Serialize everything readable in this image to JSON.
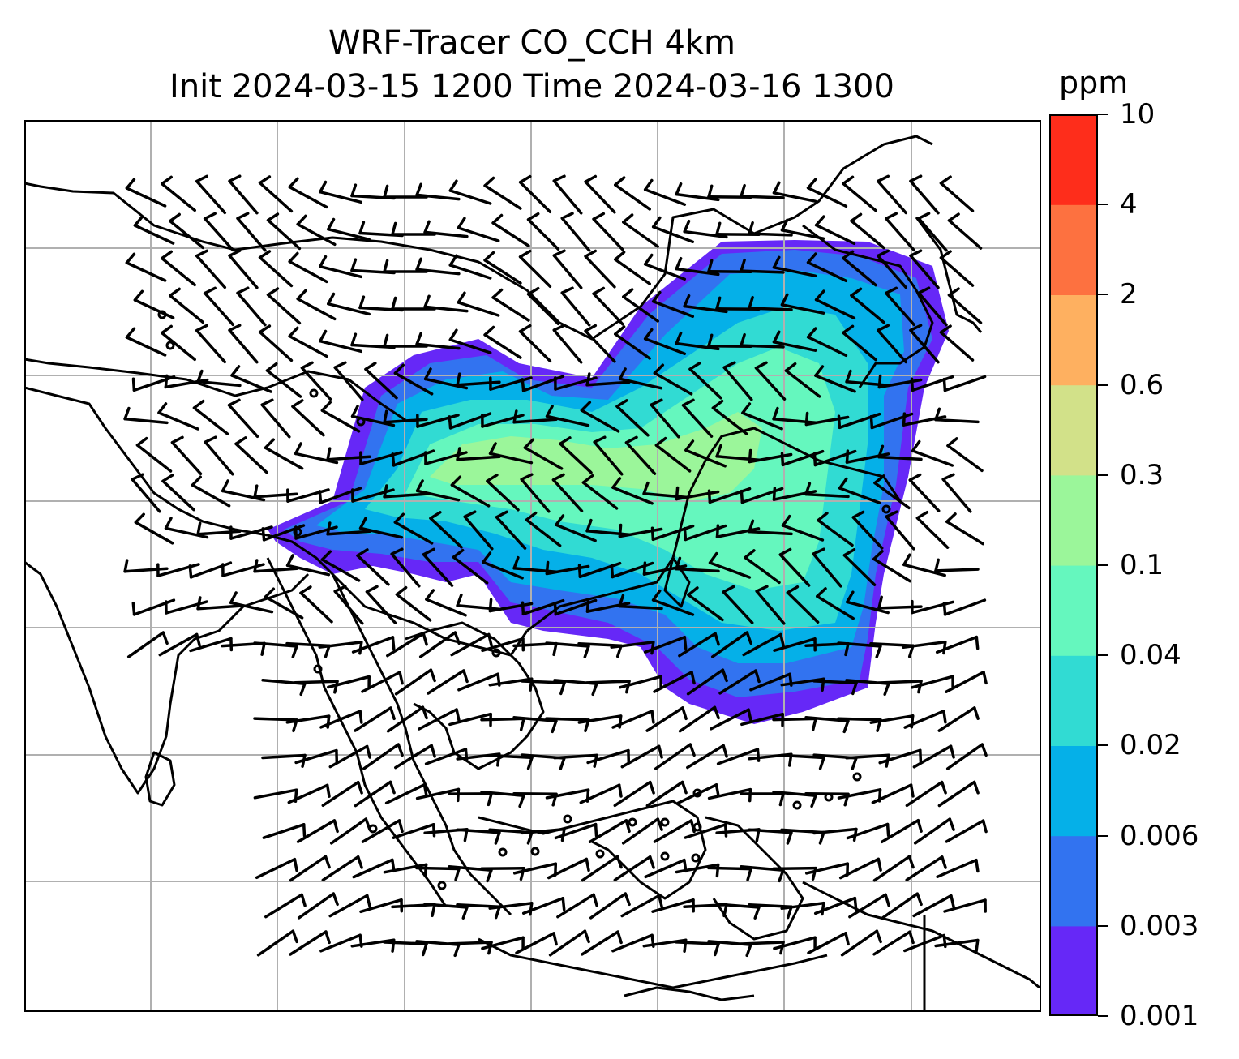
{
  "title": {
    "line1": "WRF-Tracer CO_CCH 4km",
    "line2": "Init 2024-03-15 1200 Time 2024-03-16 1300"
  },
  "colorbar": {
    "unit": "ppm",
    "levels": [
      "0.001",
      "0.003",
      "0.006",
      "0.02",
      "0.04",
      "0.1",
      "0.3",
      "0.6",
      "2",
      "4",
      "10"
    ],
    "colors": [
      "#6628f7",
      "#3273f0",
      "#05b0e8",
      "#31dbd3",
      "#65f7be",
      "#9bf69a",
      "#d2e189",
      "#feb060",
      "#fd7140",
      "#fe2d1b"
    ]
  },
  "map": {
    "grid": true,
    "coastline_color": "#000000",
    "barb_color": "#000000",
    "gridline_color": "#b0b0b0",
    "plume_colors": [
      "#6628f7",
      "#3273f0",
      "#05b0e8",
      "#31dbd3",
      "#65f7be",
      "#9bf69a"
    ]
  }
}
